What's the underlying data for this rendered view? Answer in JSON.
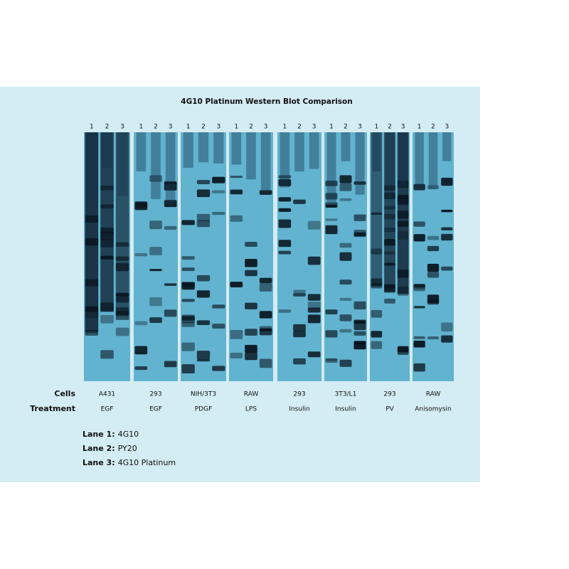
{
  "title": "4G10 Platinum Western Blot Comparison",
  "row_labels": {
    "cells": "Cells",
    "treatment": "Treatment"
  },
  "panels": [
    {
      "lanes": [
        "1",
        "2",
        "3"
      ],
      "cells": "A431",
      "treatment": "EGF"
    },
    {
      "lanes": [
        "1",
        "2",
        "3"
      ],
      "cells": "293",
      "treatment": "EGF"
    },
    {
      "lanes": [
        "1",
        "2",
        "3"
      ],
      "cells": "NIH/3T3",
      "treatment": "PDGF"
    },
    {
      "lanes": [
        "1",
        "2",
        "3"
      ],
      "cells": "RAW",
      "treatment": "LPS"
    },
    {
      "lanes": [
        "1",
        "2",
        "3"
      ],
      "cells": "293",
      "treatment": "Insulin"
    },
    {
      "lanes": [
        "1",
        "2",
        "3"
      ],
      "cells": "3T3/L1",
      "treatment": "Insulin"
    },
    {
      "lanes": [
        "1",
        "2",
        "3"
      ],
      "cells": "293",
      "treatment": "PV"
    },
    {
      "lanes": [
        "1",
        "2",
        "3"
      ],
      "cells": "RAW",
      "treatment": "Anisomysin"
    }
  ],
  "legend": [
    {
      "key": "Lane 1:",
      "text": "4G10"
    },
    {
      "key": "Lane 2:",
      "text": "PY20"
    },
    {
      "key": "Lane 3:",
      "text": "4G10 Platinum"
    }
  ]
}
